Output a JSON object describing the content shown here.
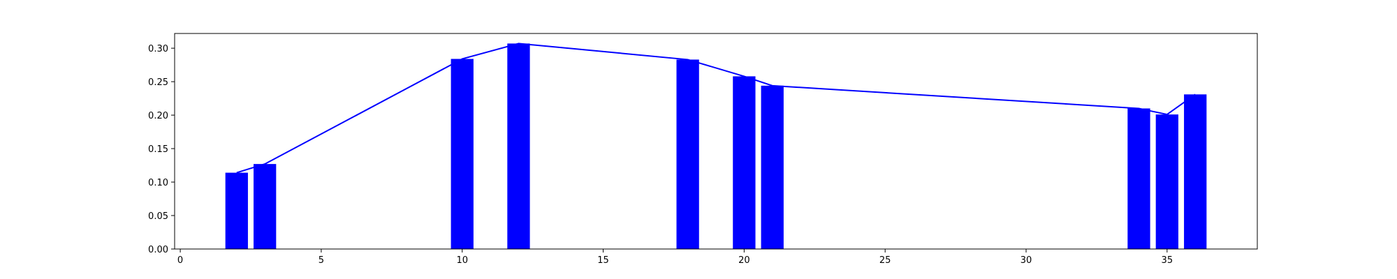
{
  "chart_data": {
    "type": "bar",
    "title": "",
    "xlabel": "",
    "ylabel": "",
    "xlim": [
      -0.2,
      38.2
    ],
    "ylim": [
      0.0,
      0.322
    ],
    "grid": false,
    "bar_width": 0.8,
    "color": "#0000ff",
    "x": [
      2,
      3,
      10,
      12,
      18,
      20,
      21,
      34,
      35,
      36
    ],
    "values": [
      0.114,
      0.127,
      0.284,
      0.307,
      0.283,
      0.258,
      0.244,
      0.21,
      0.201,
      0.231
    ],
    "overlay_line": {
      "type": "line",
      "x": [
        2,
        3,
        10,
        12,
        18,
        20,
        21,
        34,
        35,
        36
      ],
      "values": [
        0.114,
        0.127,
        0.284,
        0.307,
        0.283,
        0.258,
        0.244,
        0.21,
        0.201,
        0.231
      ],
      "color": "#0000ff"
    },
    "x_ticks": [
      0,
      5,
      10,
      15,
      20,
      25,
      30,
      35
    ],
    "x_tick_labels": [
      "0",
      "5",
      "10",
      "15",
      "20",
      "25",
      "30",
      "35"
    ],
    "y_ticks": [
      0.0,
      0.05,
      0.1,
      0.15,
      0.2,
      0.25,
      0.3
    ],
    "y_tick_labels": [
      "0.00",
      "0.05",
      "0.10",
      "0.15",
      "0.20",
      "0.25",
      "0.30"
    ]
  }
}
